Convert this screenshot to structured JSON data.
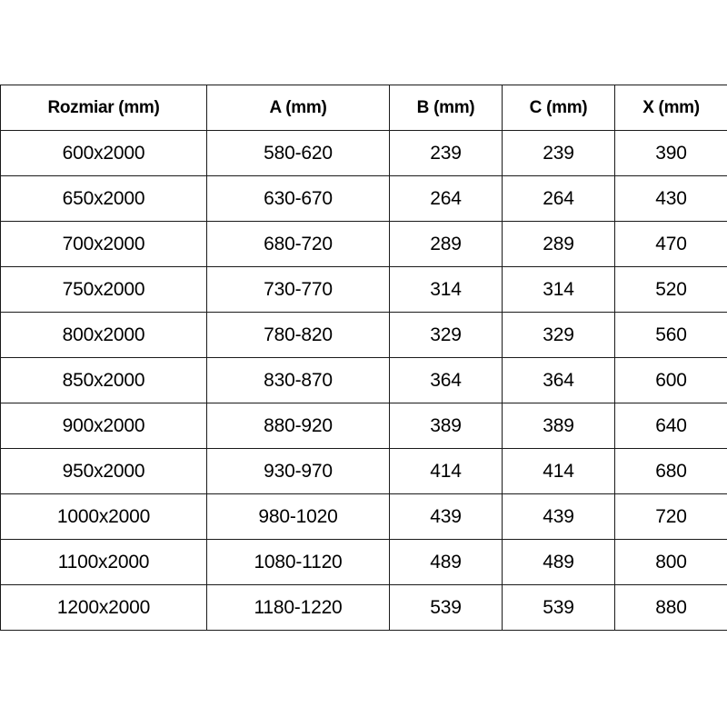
{
  "table": {
    "headers": [
      "Rozmiar (mm)",
      "A (mm)",
      "B (mm)",
      "C (mm)",
      "X (mm)"
    ],
    "rows": [
      [
        "600x2000",
        "580-620",
        "239",
        "239",
        "390"
      ],
      [
        "650x2000",
        "630-670",
        "264",
        "264",
        "430"
      ],
      [
        "700x2000",
        "680-720",
        "289",
        "289",
        "470"
      ],
      [
        "750x2000",
        "730-770",
        "314",
        "314",
        "520"
      ],
      [
        "800x2000",
        "780-820",
        "329",
        "329",
        "560"
      ],
      [
        "850x2000",
        "830-870",
        "364",
        "364",
        "600"
      ],
      [
        "900x2000",
        "880-920",
        "389",
        "389",
        "640"
      ],
      [
        "950x2000",
        "930-970",
        "414",
        "414",
        "680"
      ],
      [
        "1000x2000",
        "980-1020",
        "439",
        "439",
        "720"
      ],
      [
        "1100x2000",
        "1080-1120",
        "489",
        "489",
        "800"
      ],
      [
        "1200x2000",
        "1180-1220",
        "539",
        "539",
        "880"
      ]
    ]
  }
}
